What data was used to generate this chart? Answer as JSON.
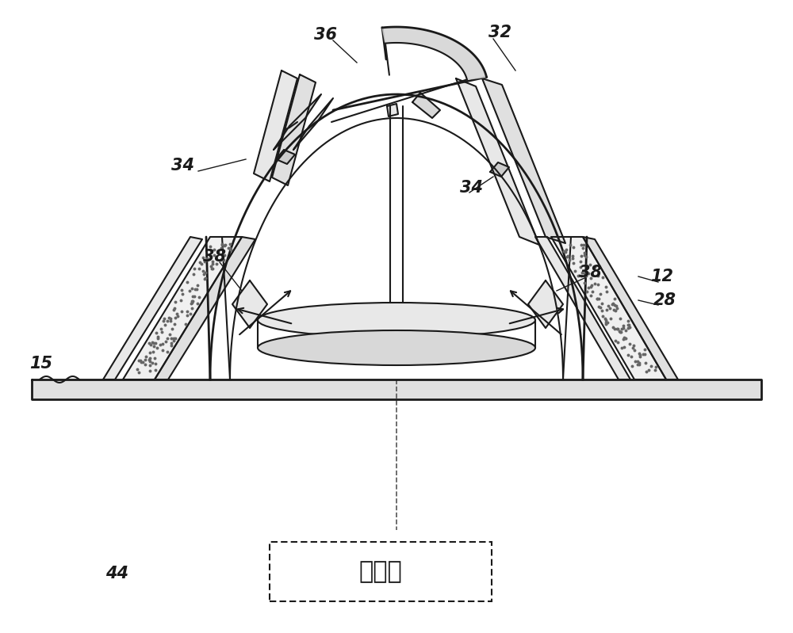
{
  "bg_color": "#ffffff",
  "line_color": "#1a1a1a",
  "fig_width": 10.0,
  "fig_height": 7.99,
  "dpi": 100,
  "controller_text": "控制器"
}
